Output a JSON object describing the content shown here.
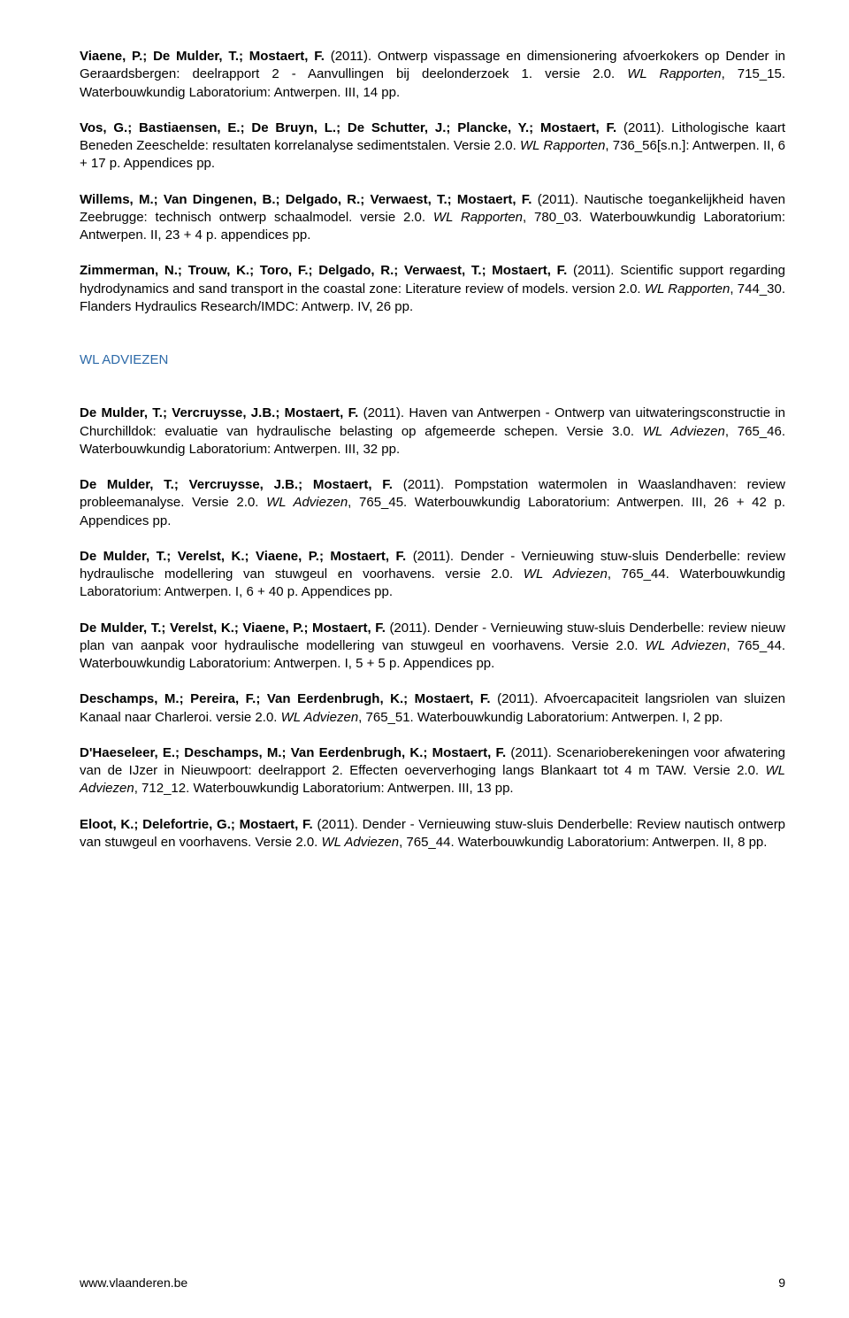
{
  "refs": [
    {
      "authors": "Viaene, P.; De Mulder, T.; Mostaert, F.",
      "year": "(2011).",
      "title": "Ontwerp vispassage en dimensionering afvoerkokers op Dender in Geraardsbergen: deelrapport 2 - Aanvullingen bij deelonderzoek 1. versie 2.0. ",
      "series": "WL Rapporten",
      "rest": ", 715_15. Waterbouwkundig Laboratorium: Antwerpen. III, 14 pp."
    },
    {
      "authors": "Vos, G.; Bastiaensen, E.; De Bruyn, L.; De Schutter, J.; Plancke, Y.; Mostaert, F.",
      "year": "(2011).",
      "title": "Lithologische kaart Beneden Zeeschelde: resultaten korrelanalyse sedimentstalen. Versie 2.0. ",
      "series": "WL Rapporten",
      "rest": ", 736_56[s.n.]: Antwerpen. II, 6 + 17 p. Appendices pp."
    },
    {
      "authors": "Willems, M.; Van Dingenen, B.; Delgado, R.; Verwaest, T.; Mostaert, F.",
      "year": "(2011).",
      "title": "Nautische toegankelijkheid haven Zeebrugge: technisch ontwerp schaalmodel. versie 2.0. ",
      "series": "WL Rapporten",
      "rest": ", 780_03. Waterbouwkundig Laboratorium: Antwerpen. II, 23 + 4 p. appendices pp."
    },
    {
      "authors": "Zimmerman, N.; Trouw, K.; Toro, F.; Delgado, R.; Verwaest, T.; Mostaert, F.",
      "year": "(2011).",
      "title": "Scientific support regarding hydrodynamics and sand transport in the coastal zone: Literature review of models. version 2.0. ",
      "series": "WL Rapporten",
      "rest": ", 744_30. Flanders Hydraulics Research/IMDC: Antwerp. IV, 26 pp."
    }
  ],
  "sectionHeading": "WL ADVIEZEN",
  "adviezen": [
    {
      "authors": "De Mulder, T.; Vercruysse, J.B.; Mostaert, F.",
      "year": "(2011).",
      "title": "Haven van Antwerpen - Ontwerp van uitwateringsconstructie in Churchilldok: evaluatie van hydraulische belasting op afgemeerde schepen. Versie 3.0. ",
      "series": "WL Adviezen",
      "rest": ", 765_46. Waterbouwkundig Laboratorium: Antwerpen. III, 32 pp."
    },
    {
      "authors": "De Mulder, T.; Vercruysse, J.B.; Mostaert, F.",
      "year": "(2011).",
      "title": "Pompstation watermolen in Waaslandhaven: review probleemanalyse. Versie 2.0. ",
      "series": "WL Adviezen",
      "rest": ", 765_45. Waterbouwkundig Laboratorium: Antwerpen. III, 26 + 42 p. Appendices pp."
    },
    {
      "authors": "De Mulder, T.; Verelst, K.; Viaene, P.; Mostaert, F.",
      "year": "(2011).",
      "title": "Dender - Vernieuwing stuw-sluis Denderbelle: review hydraulische modellering van stuwgeul en voorhavens. versie 2.0. ",
      "series": "WL Adviezen",
      "rest": ", 765_44. Waterbouwkundig Laboratorium: Antwerpen. I, 6 + 40 p. Appendices pp."
    },
    {
      "authors": "De Mulder, T.; Verelst, K.; Viaene, P.; Mostaert, F.",
      "year": "(2011).",
      "title": "Dender - Vernieuwing stuw-sluis Denderbelle: review nieuw plan van aanpak voor hydraulische modellering van stuwgeul en voorhavens. Versie 2.0. ",
      "series": "WL Adviezen",
      "rest": ", 765_44. Waterbouwkundig Laboratorium: Antwerpen. I, 5 + 5 p. Appendices pp."
    },
    {
      "authors": "Deschamps, M.; Pereira, F.; Van Eerdenbrugh, K.; Mostaert, F.",
      "year": "(2011).",
      "title": "Afvoercapaciteit langsriolen van sluizen Kanaal naar Charleroi. versie 2.0. ",
      "series": "WL Adviezen",
      "rest": ", 765_51. Waterbouwkundig Laboratorium: Antwerpen. I, 2 pp."
    },
    {
      "authors": "D'Haeseleer, E.; Deschamps, M.; Van Eerdenbrugh, K.; Mostaert, F.",
      "year": "(2011).",
      "title": "Scenarioberekeningen voor afwatering van de IJzer in Nieuwpoort: deelrapport 2. Effecten oeververhoging langs Blankaart tot 4 m TAW. Versie 2.0. ",
      "series": "WL Adviezen",
      "rest": ", 712_12. Waterbouwkundig Laboratorium: Antwerpen. III, 13 pp."
    },
    {
      "authors": "Eloot, K.; Delefortrie, G.; Mostaert, F.",
      "year": "(2011).",
      "title": "Dender - Vernieuwing stuw-sluis Denderbelle: Review nautisch ontwerp van stuwgeul en voorhavens. Versie 2.0. ",
      "series": "WL Adviezen",
      "rest": ", 765_44. Waterbouwkundig Laboratorium: Antwerpen. II, 8 pp."
    }
  ],
  "footer": {
    "url": "www.vlaanderen.be",
    "page": "9"
  }
}
